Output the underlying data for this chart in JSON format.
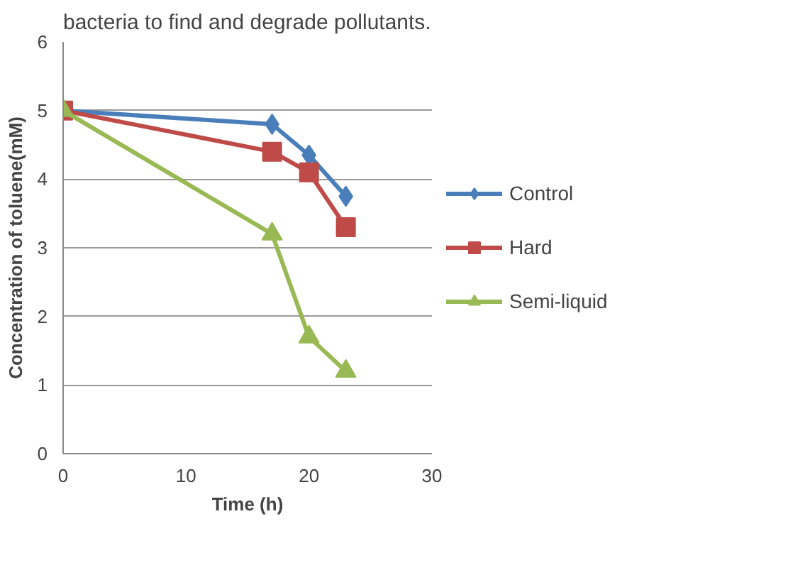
{
  "chart_data": {
    "type": "line",
    "xlabel": "Time (h)",
    "ylabel": "Concentration of toluene(mM)",
    "annotations": [
      "bacteria to find and degrade pollutants."
    ],
    "xlim": [
      0,
      30
    ],
    "xticks": [
      0,
      10,
      20,
      30
    ],
    "ylim": [
      0,
      6
    ],
    "yticks": [
      0,
      1,
      2,
      3,
      4,
      5,
      6
    ],
    "grid": "y",
    "legend": "right",
    "series": [
      {
        "name": "Control",
        "color": "#4a7ebb",
        "marker": "diamond",
        "x": [
          0,
          17,
          20,
          23
        ],
        "values": [
          5,
          4.8,
          4.35,
          3.75
        ]
      },
      {
        "name": "Hard",
        "color": "#be4b48",
        "marker": "square",
        "x": [
          0,
          17,
          20,
          23
        ],
        "values": [
          5,
          4.4,
          4.1,
          3.3
        ]
      },
      {
        "name": "Semi-liquid",
        "color": "#98b954",
        "marker": "triangle",
        "x": [
          0,
          17,
          20,
          23
        ],
        "values": [
          5,
          3.2,
          1.7,
          1.2
        ]
      }
    ]
  }
}
